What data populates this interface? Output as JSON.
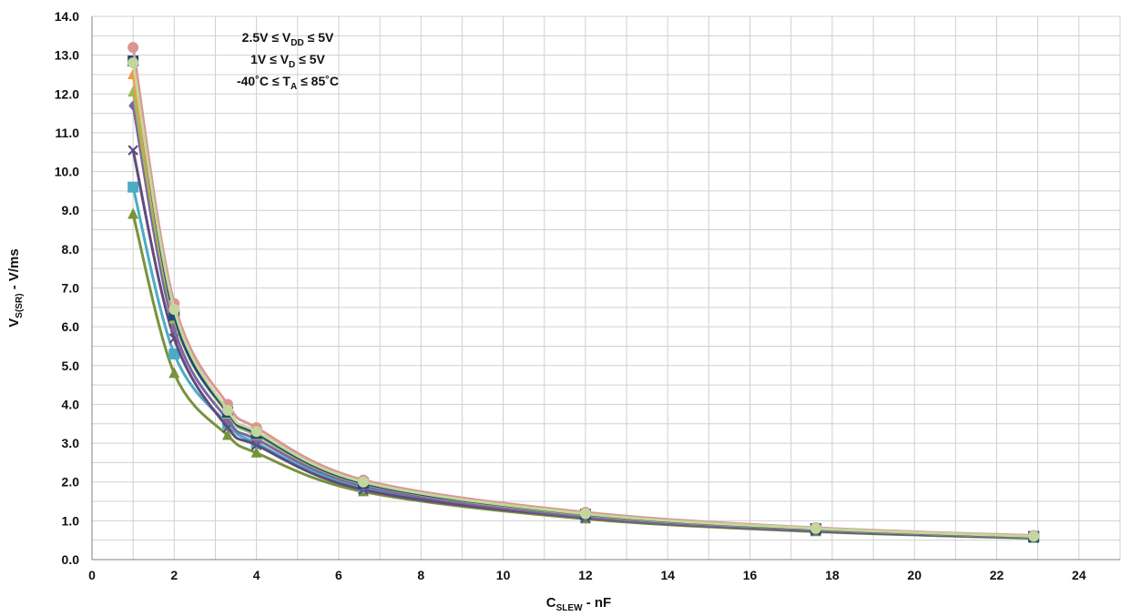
{
  "chart_data": {
    "type": "line",
    "title": "",
    "xlabel": {
      "main": "C",
      "sub": "SLEW",
      "suffix": " - nF"
    },
    "ylabel": {
      "main": "V",
      "sub": "S(SR)",
      "suffix": "  - V/ms"
    },
    "xlim": [
      0,
      25
    ],
    "ylim": [
      0,
      14
    ],
    "x_ticks": [
      0,
      2,
      4,
      6,
      8,
      10,
      12,
      14,
      16,
      18,
      20,
      22,
      24
    ],
    "x_tick_labels": [
      "0",
      "2",
      "4",
      "6",
      "8",
      "10",
      "12",
      "14",
      "16",
      "18",
      "20",
      "22",
      "24"
    ],
    "y_ticks": [
      0,
      1,
      2,
      3,
      4,
      5,
      6,
      7,
      8,
      9,
      10,
      11,
      12,
      13,
      14
    ],
    "y_tick_labels": [
      "0.0",
      "1.0",
      "2.0",
      "3.0",
      "4.0",
      "5.0",
      "6.0",
      "7.0",
      "8.0",
      "9.0",
      "10.0",
      "11.0",
      "12.0",
      "13.0",
      "14.0"
    ],
    "x_minor_step": 1,
    "y_minor_step": 0.5,
    "grid": true,
    "legend": "none",
    "annotations": [
      {
        "parts": [
          {
            "t": "2.5V ≤ V"
          },
          {
            "t": "DD",
            "sub": true
          },
          {
            "t": " ≤ 5V"
          }
        ]
      },
      {
        "parts": [
          {
            "t": "1V ≤ V"
          },
          {
            "t": "D",
            "sub": true
          },
          {
            "t": " ≤ 5V"
          }
        ]
      },
      {
        "parts": [
          {
            "t": "-40˚C ≤ T"
          },
          {
            "t": "A",
            "sub": true
          },
          {
            "t": " ≤ 85˚C"
          }
        ]
      }
    ],
    "x": [
      1,
      2,
      3.3,
      4,
      6.6,
      12,
      17.6,
      22.9
    ],
    "series": [
      {
        "color": "#77933C",
        "marker": "triangle",
        "values": [
          8.9,
          4.8,
          3.2,
          2.75,
          1.75,
          1.05,
          0.72,
          0.55
        ]
      },
      {
        "color": "#4BACC6",
        "marker": "square",
        "values": [
          9.6,
          5.3,
          3.5,
          3.0,
          1.85,
          1.15,
          0.8,
          0.6
        ]
      },
      {
        "color": "#604A7B",
        "marker": "x",
        "values": [
          10.55,
          5.7,
          3.4,
          2.95,
          1.8,
          1.08,
          0.74,
          0.56
        ]
      },
      {
        "color": "#8064A2",
        "marker": "diamond",
        "values": [
          11.7,
          5.95,
          3.6,
          3.1,
          1.9,
          1.1,
          0.76,
          0.57
        ]
      },
      {
        "color": "#9BBB59",
        "marker": "triangle",
        "values": [
          12.05,
          6.2,
          3.75,
          3.2,
          1.95,
          1.15,
          0.78,
          0.58
        ]
      },
      {
        "color": "#F79646",
        "marker": "triangle",
        "values": [
          12.5,
          6.35,
          3.85,
          3.25,
          2.0,
          1.2,
          0.8,
          0.6
        ]
      },
      {
        "color": "#1F497D",
        "marker": "square",
        "values": [
          12.85,
          6.3,
          3.8,
          3.25,
          1.97,
          1.17,
          0.79,
          0.59
        ]
      },
      {
        "color": "#DA9694",
        "marker": "circle",
        "values": [
          13.2,
          6.6,
          4.0,
          3.4,
          2.05,
          1.22,
          0.82,
          0.62
        ]
      },
      {
        "color": "#C4D79B",
        "marker": "circle",
        "values": [
          12.8,
          6.45,
          3.85,
          3.3,
          2.0,
          1.18,
          0.8,
          0.6
        ]
      }
    ]
  }
}
